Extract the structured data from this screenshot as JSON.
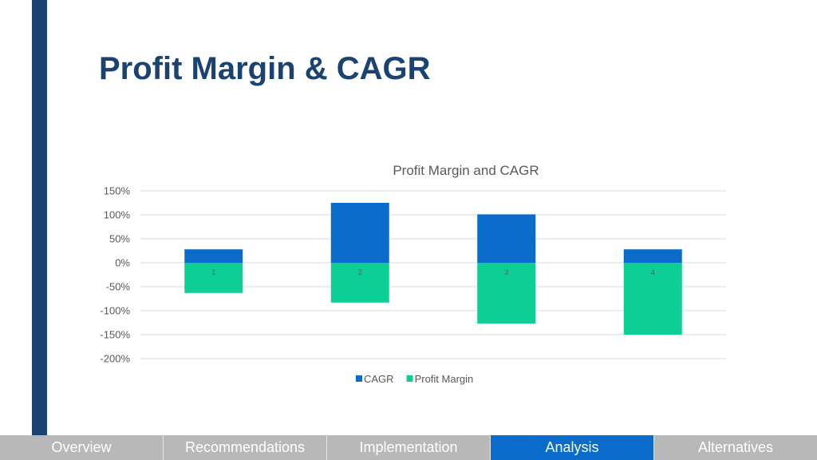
{
  "page": {
    "title": "Profit Margin & CAGR",
    "colors": {
      "accent_bar": "#1b4372",
      "title": "#1b4372",
      "nav_bg": "#b8b8b8",
      "nav_active": "#0b6bcb",
      "nav_text": "#ffffff"
    }
  },
  "nav": {
    "tabs": [
      {
        "label": "Overview",
        "active": false
      },
      {
        "label": "Recommendations",
        "active": false
      },
      {
        "label": "Implementation",
        "active": false
      },
      {
        "label": "Analysis",
        "active": true
      },
      {
        "label": "Alternatives",
        "active": false
      }
    ]
  },
  "chart_data": {
    "type": "bar",
    "stacked": true,
    "title": "Profit Margin and CAGR",
    "categories": [
      "1",
      "2",
      "3",
      "4"
    ],
    "series": [
      {
        "name": "CAGR",
        "color": "#0b6bcb",
        "values": [
          28,
          125,
          101,
          28
        ]
      },
      {
        "name": "Profit Margin",
        "color": "#0dcf96",
        "values": [
          -63,
          -83,
          -127,
          -150
        ]
      }
    ],
    "ylim": [
      -200,
      150
    ],
    "yticks": [
      150,
      100,
      50,
      0,
      -50,
      -100,
      -150,
      -200
    ],
    "ytick_labels": [
      "150%",
      "100%",
      "50%",
      "0%",
      "-50%",
      "-100%",
      "-150%",
      "-200%"
    ],
    "grid": true,
    "legend": "bottom"
  }
}
